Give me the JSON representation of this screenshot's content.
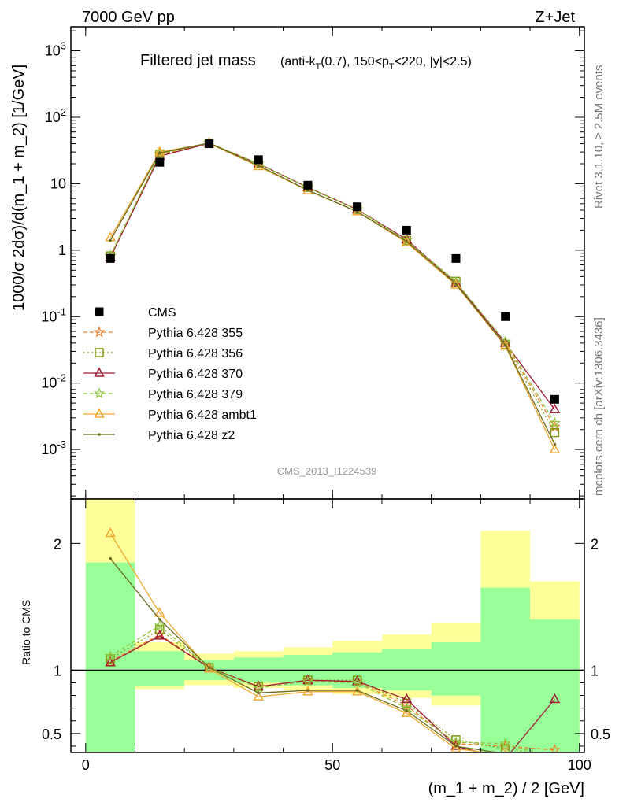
{
  "header": {
    "left": "7000 GeV pp",
    "right": "Z+Jet"
  },
  "side": {
    "rivet": "Rivet 3.1.10, ≥ 2.5M events",
    "mcplots": "mcplots.cern.ch [arXiv:1306.3436]"
  },
  "watermark": "CMS_2013_I1224539",
  "title": {
    "main": "Filtered jet mass",
    "sub": "(anti-k_T(0.7), 150<p_T<220, |y|<2.5)"
  },
  "ylabel_main": "1000/σ 2dσ)/d(m_1 + m_2) [1/GeV]",
  "ylabel_ratio": "Ratio to CMS",
  "xlabel": "(m_1 + m_2) / 2 [GeV]",
  "chart_data": [
    {
      "type": "line",
      "scale": "log",
      "xlim": [
        -3,
        101
      ],
      "ylim": [
        0.00018,
        2300
      ],
      "xticks": [
        "0",
        "50",
        "100"
      ],
      "yticks": [
        "10^-3",
        "10^-2",
        "10^-1",
        "1",
        "10",
        "10^2",
        "10^3"
      ],
      "x": [
        5,
        15,
        25,
        35,
        45,
        55,
        65,
        75,
        85,
        95
      ],
      "data": {
        "name": "CMS",
        "values": [
          0.75,
          21,
          40,
          23,
          9.5,
          4.5,
          2.0,
          0.75,
          0.1,
          0.0057
        ]
      },
      "series": [
        {
          "name": "Pythia 6.428 355",
          "color": "#f07f2a",
          "values": [
            0.8,
            27,
            41,
            20,
            8.8,
            4.1,
            1.4,
            0.33,
            0.04,
            0.0022
          ]
        },
        {
          "name": "Pythia 6.428 356",
          "color": "#7f9a0f",
          "values": [
            0.82,
            28,
            41,
            20,
            8.8,
            4.1,
            1.4,
            0.34,
            0.038,
            0.0018
          ]
        },
        {
          "name": "Pythia 6.428 370",
          "color": "#a01c34",
          "values": [
            0.78,
            26,
            40.5,
            20,
            8.8,
            4.1,
            1.45,
            0.32,
            0.04,
            0.004
          ]
        },
        {
          "name": "Pythia 6.428 379",
          "color": "#8ec63f",
          "values": [
            0.83,
            28,
            41,
            20,
            8.7,
            4.1,
            1.4,
            0.33,
            0.042,
            0.0025
          ]
        },
        {
          "name": "Pythia 6.428 ambt1",
          "color": "#f0a830",
          "values": [
            1.55,
            30,
            40.5,
            18.2,
            7.9,
            3.8,
            1.3,
            0.3,
            0.036,
            0.001
          ]
        },
        {
          "name": "Pythia 6.428 z2",
          "color": "#6b6a1e",
          "values": [
            1.4,
            29,
            41,
            18.8,
            8.0,
            3.8,
            1.35,
            0.31,
            0.037,
            0.0012
          ]
        }
      ]
    },
    {
      "type": "line",
      "xlim": [
        -3,
        101
      ],
      "ylim": [
        0.35,
        2.35
      ],
      "yticks": [
        "0.5",
        "1",
        "2"
      ],
      "x": [
        5,
        15,
        25,
        35,
        45,
        55,
        65,
        75,
        85,
        95
      ],
      "reference": 1,
      "bands": {
        "edges": [
          0,
          10,
          20,
          30,
          40,
          50,
          60,
          70,
          80,
          90,
          100
        ],
        "green": [
          [
            0.35,
            1.85
          ],
          [
            0.87,
            1.15
          ],
          [
            0.92,
            1.08
          ],
          [
            0.9,
            1.1
          ],
          [
            0.88,
            1.12
          ],
          [
            0.86,
            1.14
          ],
          [
            0.84,
            1.17
          ],
          [
            0.8,
            1.22
          ],
          [
            0.35,
            1.65
          ],
          [
            0.35,
            1.4
          ]
        ],
        "yellow": [
          [
            0.35,
            2.35
          ],
          [
            0.85,
            1.22
          ],
          [
            0.88,
            1.13
          ],
          [
            0.86,
            1.15
          ],
          [
            0.84,
            1.18
          ],
          [
            0.81,
            1.23
          ],
          [
            0.78,
            1.28
          ],
          [
            0.72,
            1.37
          ],
          [
            0.35,
            2.1
          ],
          [
            0.35,
            1.7
          ]
        ]
      },
      "series": [
        {
          "name": "Pythia 6.428 355",
          "values": [
            1.07,
            1.28,
            1.02,
            0.87,
            0.92,
            0.91,
            0.72,
            0.42,
            0.4,
            0.37
          ]
        },
        {
          "name": "Pythia 6.428 356",
          "values": [
            1.09,
            1.32,
            1.02,
            0.87,
            0.92,
            0.92,
            0.74,
            0.45,
            0.38,
            0.32
          ]
        },
        {
          "name": "Pythia 6.428 370",
          "values": [
            1.06,
            1.27,
            1.02,
            0.87,
            0.92,
            0.91,
            0.77,
            0.4,
            0.3,
            0.77
          ]
        },
        {
          "name": "Pythia 6.428 379",
          "values": [
            1.11,
            1.35,
            1.02,
            0.86,
            0.91,
            0.9,
            0.7,
            0.43,
            0.42,
            0.3
          ]
        },
        {
          "name": "Pythia 6.428 ambt1",
          "values": [
            2.08,
            1.45,
            1.01,
            0.79,
            0.83,
            0.83,
            0.66,
            0.38,
            0.33,
            0.2
          ]
        },
        {
          "name": "Pythia 6.428 z2",
          "values": [
            1.88,
            1.4,
            1.02,
            0.82,
            0.84,
            0.84,
            0.68,
            0.4,
            0.34,
            0.22
          ]
        }
      ]
    }
  ]
}
